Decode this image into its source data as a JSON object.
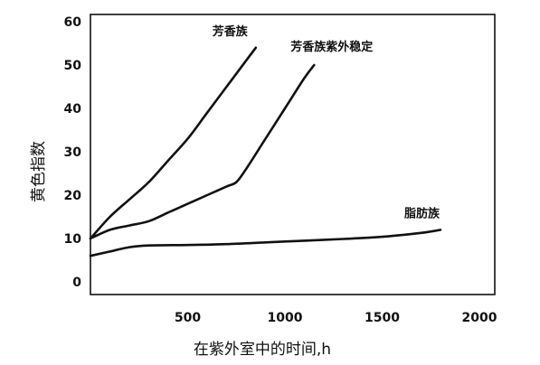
{
  "chart_data": {
    "type": "line",
    "xlabel": "在紫外室中的时间,h",
    "ylabel": "黄色指数",
    "xlim": [
      0,
      2000
    ],
    "ylim": [
      0,
      60
    ],
    "x_ticks": [
      "500",
      "1000",
      "1500",
      "2000"
    ],
    "y_ticks": [
      "0",
      "10",
      "20",
      "30",
      "40",
      "50",
      "60"
    ],
    "series": [
      {
        "name": "芳香族",
        "x": [
          0,
          100,
          200,
          300,
          400,
          500,
          600,
          700,
          800,
          850
        ],
        "y": [
          10,
          15,
          19,
          23,
          28,
          33,
          39,
          45,
          51,
          54
        ]
      },
      {
        "name": "芳香族紫外稳定",
        "x": [
          0,
          100,
          200,
          300,
          400,
          500,
          600,
          700,
          750,
          800,
          900,
          1000,
          1100,
          1150
        ],
        "y": [
          10,
          12,
          13,
          14,
          16,
          18,
          20,
          22,
          23,
          26,
          33,
          40,
          47,
          50
        ]
      },
      {
        "name": "脂肪族",
        "x": [
          0,
          100,
          200,
          300,
          500,
          700,
          900,
          1100,
          1300,
          1500,
          1700,
          1800
        ],
        "y": [
          6,
          7,
          8,
          8.4,
          8.5,
          8.7,
          9.1,
          9.5,
          9.9,
          10.4,
          11.3,
          12
        ]
      }
    ]
  }
}
